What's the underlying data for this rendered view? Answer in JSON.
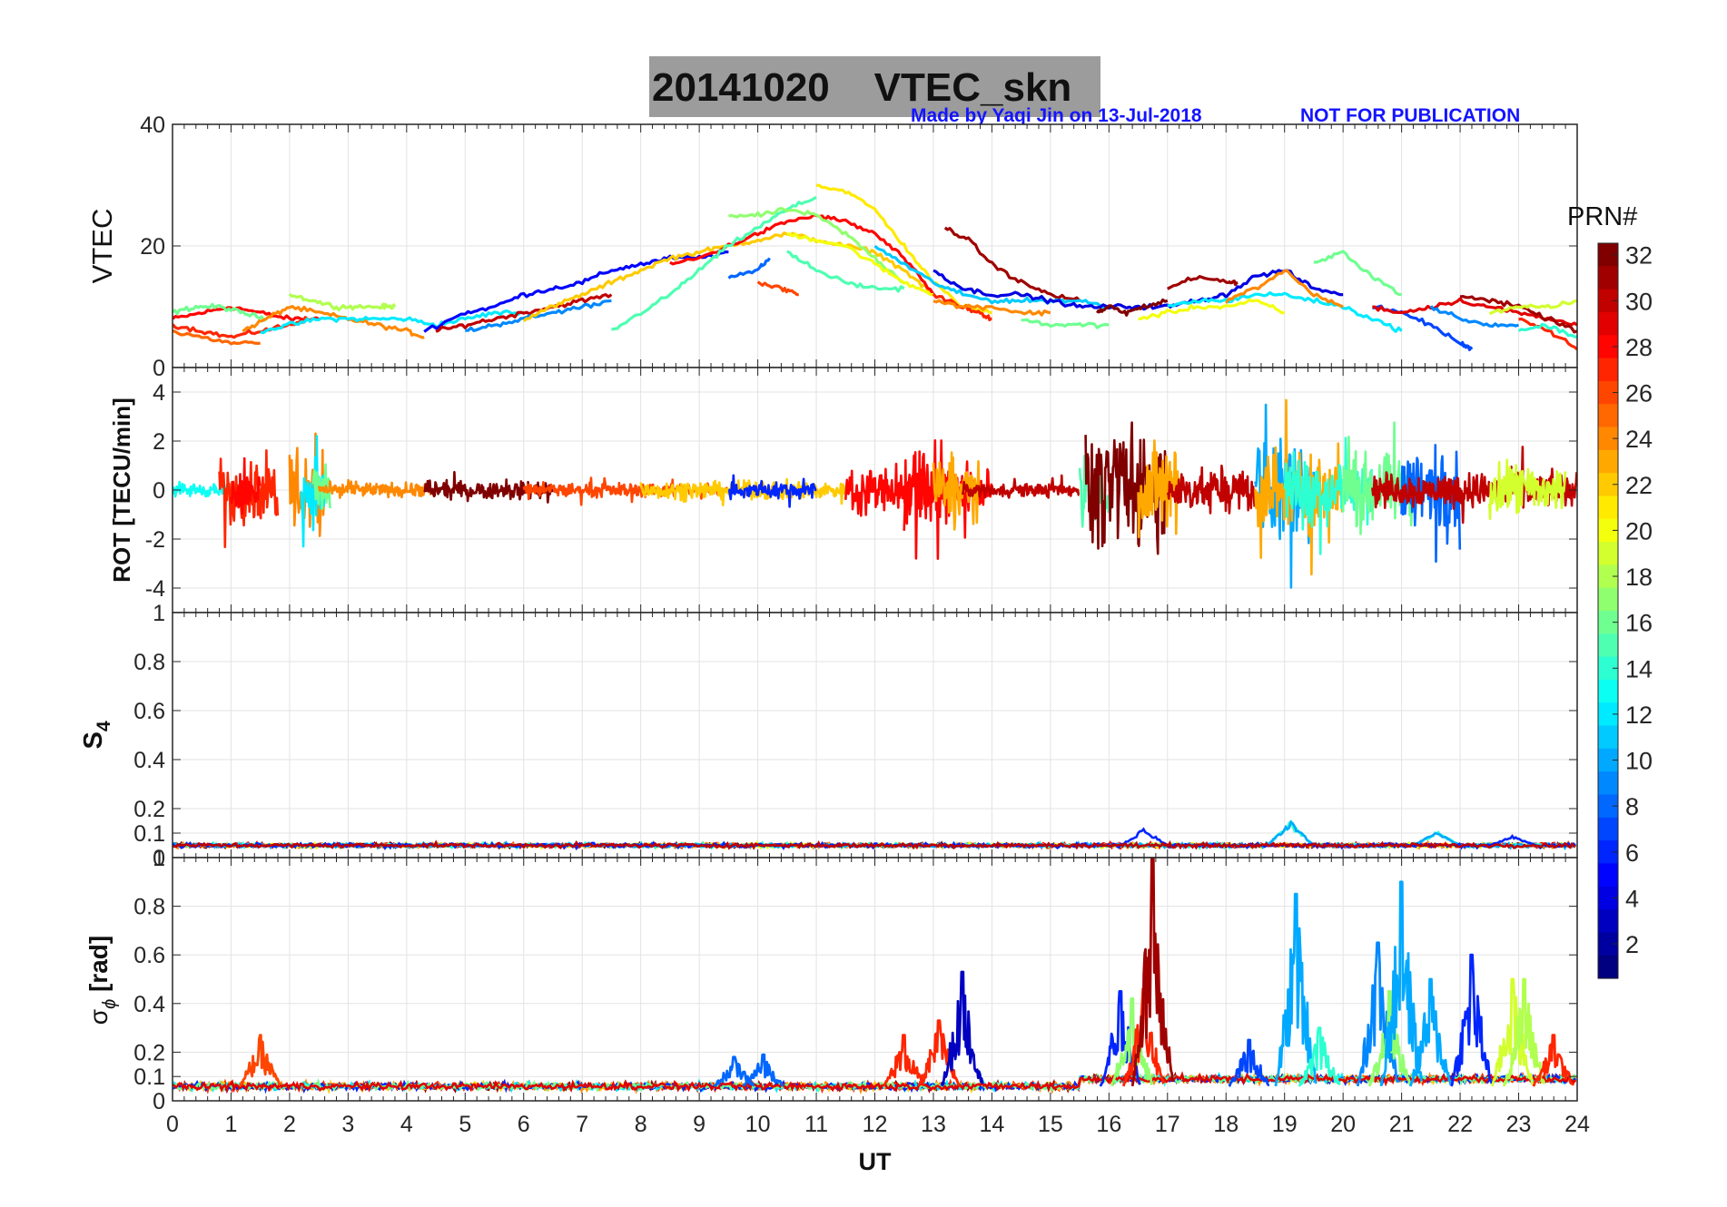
{
  "title": {
    "date": "20141020",
    "param": "VTEC_skn",
    "full": "20141020    VTEC_skn"
  },
  "credit": {
    "made_by": "Made by Yaqi Jin on 13-Jul-2018",
    "notice": "NOT FOR PUBLICATION"
  },
  "colorbar": {
    "label": "PRN#",
    "ticks": [
      2,
      4,
      6,
      8,
      10,
      12,
      14,
      16,
      18,
      20,
      22,
      24,
      26,
      28,
      30,
      32
    ],
    "range": [
      1,
      32
    ],
    "colormap": "jet"
  },
  "x_axis": {
    "label": "UT",
    "ticks": [
      "0",
      "1",
      "2",
      "3",
      "4",
      "5",
      "6",
      "7",
      "8",
      "9",
      "10",
      "11",
      "12",
      "13",
      "14",
      "15",
      "16",
      "17",
      "18",
      "19",
      "20",
      "21",
      "22",
      "23",
      "24"
    ],
    "range": [
      0,
      24
    ]
  },
  "panels": [
    {
      "id": "vtec",
      "ylabel": "VTEC",
      "ylim": [
        0,
        40
      ],
      "yticks": [
        "0",
        "20",
        "40"
      ]
    },
    {
      "id": "rot",
      "ylabel": "ROT [TECU/min]",
      "ylim": [
        -5,
        5
      ],
      "yticks": [
        "-4",
        "-2",
        "0",
        "2",
        "4"
      ]
    },
    {
      "id": "s4",
      "ylabel": "S4",
      "ylabel_main": "S",
      "ylabel_sub": "4",
      "ylim": [
        0,
        1
      ],
      "yticks": [
        "0",
        "0.1",
        "0.2",
        "0.4",
        "0.6",
        "0.8",
        "1"
      ]
    },
    {
      "id": "sigphi",
      "ylabel": "σφ [rad]",
      "ylabel_main": "σ",
      "ylabel_sub": "ϕ",
      "ylabel_unit": "[rad]",
      "ylim": [
        0,
        1
      ],
      "yticks": [
        "0",
        "0.1",
        "0.2",
        "0.4",
        "0.6",
        "0.8",
        "1"
      ]
    }
  ],
  "chart_data": [
    {
      "type": "line",
      "title": "20141020    VTEC_skn",
      "xlabel": "UT",
      "ylabel": "VTEC",
      "xlim": [
        0,
        24
      ],
      "ylim": [
        0,
        40
      ],
      "series": [
        {
          "prn": 28,
          "x": [
            0,
            0.5,
            1,
            1.5,
            2,
            2.5
          ],
          "y": [
            8,
            9,
            10,
            9,
            8,
            8
          ]
        },
        {
          "prn": 25,
          "x": [
            0,
            0.5,
            1,
            1.5
          ],
          "y": [
            6,
            5,
            4,
            4
          ]
        },
        {
          "prn": 16,
          "x": [
            0,
            0.4,
            0.8,
            1.2,
            1.6
          ],
          "y": [
            9,
            10,
            10,
            9,
            8
          ]
        },
        {
          "prn": 27,
          "x": [
            0,
            0.5,
            1,
            1.5,
            2,
            2.3
          ],
          "y": [
            7,
            6,
            5,
            6,
            7,
            8
          ]
        },
        {
          "prn": 24,
          "x": [
            1.2,
            1.6,
            2,
            2.5,
            3,
            3.5,
            4,
            4.3
          ],
          "y": [
            6,
            8,
            10,
            9,
            8,
            7,
            6,
            5
          ]
        },
        {
          "prn": 18,
          "x": [
            2,
            2.4,
            2.8,
            3.2,
            3.6,
            3.8
          ],
          "y": [
            12,
            11,
            10,
            10,
            10,
            10
          ]
        },
        {
          "prn": 12,
          "x": [
            1.5,
            2,
            2.5,
            3,
            3.5,
            4,
            4.5,
            5,
            5.5,
            6
          ],
          "y": [
            6,
            7,
            8,
            8,
            8,
            8,
            7,
            8,
            9,
            9
          ]
        },
        {
          "prn": 5,
          "x": [
            4.3,
            5,
            5.5,
            6,
            6.5,
            7,
            7.5,
            8,
            8.5,
            9,
            9.5
          ],
          "y": [
            6,
            9,
            10,
            12,
            13,
            14,
            16,
            17,
            18,
            18,
            19
          ]
        },
        {
          "prn": 30,
          "x": [
            4.5,
            5,
            5.5,
            6,
            6.5,
            7,
            7.5
          ],
          "y": [
            6,
            7,
            8,
            9,
            10,
            11,
            12
          ]
        },
        {
          "prn": 9,
          "x": [
            5,
            5.5,
            6,
            6.5,
            7,
            7.5
          ],
          "y": [
            6,
            7,
            8,
            9,
            10,
            11
          ]
        },
        {
          "prn": 22,
          "x": [
            6,
            6.5,
            7,
            7.5,
            8,
            8.5,
            9,
            9.5,
            10,
            10.5,
            11,
            11.5,
            12,
            12.5,
            13
          ],
          "y": [
            8,
            10,
            12,
            14,
            16,
            18,
            19,
            20,
            21,
            22,
            21,
            20,
            19,
            16,
            12
          ]
        },
        {
          "prn": 28,
          "x": [
            8.5,
            9,
            9.5,
            10,
            10.5,
            11,
            11.5,
            12,
            12.5,
            13
          ],
          "y": [
            17,
            18,
            20,
            22,
            24,
            25,
            24,
            22,
            18,
            12
          ]
        },
        {
          "prn": 15,
          "x": [
            7.5,
            8,
            8.5,
            9,
            9.5,
            10,
            10.5,
            11
          ],
          "y": [
            6,
            9,
            12,
            16,
            20,
            23,
            26,
            28
          ]
        },
        {
          "prn": 17,
          "x": [
            9.5,
            10,
            10.5,
            11,
            11.5,
            12,
            12.5
          ],
          "y": [
            25,
            25,
            26,
            25,
            22,
            18,
            14
          ]
        },
        {
          "prn": 21,
          "x": [
            11,
            11.5,
            12,
            12.5,
            13,
            13.5,
            14
          ],
          "y": [
            30,
            29,
            26,
            20,
            14,
            10,
            9
          ]
        },
        {
          "prn": 20,
          "x": [
            10.5,
            11,
            11.5,
            12,
            12.5,
            13
          ],
          "y": [
            22,
            21,
            20,
            17,
            14,
            12
          ]
        },
        {
          "prn": 8,
          "x": [
            9.5,
            10,
            10.2
          ],
          "y": [
            15,
            16,
            18
          ]
        },
        {
          "prn": 15,
          "x": [
            10.5,
            11,
            11.5,
            12,
            12.5
          ],
          "y": [
            19,
            16,
            14,
            13,
            13
          ]
        },
        {
          "prn": 26,
          "x": [
            10,
            10.4,
            10.7
          ],
          "y": [
            14,
            13,
            12
          ]
        },
        {
          "prn": 31,
          "x": [
            13.2,
            13.6,
            14,
            14.5,
            15,
            15.5
          ],
          "y": [
            23,
            21,
            17,
            14,
            12,
            11
          ]
        },
        {
          "prn": 11,
          "x": [
            12,
            12.5,
            13,
            13.5,
            14,
            14.5,
            15,
            15.5,
            16
          ],
          "y": [
            20,
            17,
            14,
            12,
            11,
            11,
            11,
            11,
            10
          ]
        },
        {
          "prn": 4,
          "x": [
            13,
            13.5,
            14,
            14.5,
            15,
            15.5,
            16,
            16.5,
            17,
            17.5,
            18,
            18.5,
            19,
            19.5,
            20
          ],
          "y": [
            16,
            13,
            12,
            12,
            11,
            10,
            10,
            10,
            10,
            11,
            12,
            15,
            16,
            13,
            12
          ]
        },
        {
          "prn": 27,
          "x": [
            13,
            13.5,
            13.8,
            14
          ],
          "y": [
            12,
            10,
            9,
            8
          ]
        },
        {
          "prn": 24,
          "x": [
            13,
            13.5,
            14,
            14.5,
            15
          ],
          "y": [
            11,
            10,
            10,
            9,
            9
          ]
        },
        {
          "prn": 16,
          "x": [
            14.5,
            15,
            15.5,
            16
          ],
          "y": [
            8,
            7,
            7,
            7
          ]
        },
        {
          "prn": 32,
          "x": [
            15.8,
            16,
            16.3,
            16.6,
            17
          ],
          "y": [
            9,
            10,
            9,
            10,
            11
          ]
        },
        {
          "prn": 31,
          "x": [
            17,
            17.5,
            18,
            18.2
          ],
          "y": [
            13,
            15,
            14,
            14
          ]
        },
        {
          "prn": 20,
          "x": [
            16.5,
            17,
            17.5,
            18,
            18.5,
            19
          ],
          "y": [
            8,
            9,
            10,
            10,
            11,
            9
          ]
        },
        {
          "prn": 12,
          "x": [
            17,
            17.5,
            18,
            18.5,
            19,
            19.5,
            20,
            20.5,
            21
          ],
          "y": [
            10,
            11,
            11,
            12,
            12,
            11,
            10,
            8,
            6
          ]
        },
        {
          "prn": 24,
          "x": [
            18,
            18.5,
            19,
            19.5,
            20
          ],
          "y": [
            11,
            13,
            16,
            12,
            10
          ]
        },
        {
          "prn": 16,
          "x": [
            19.5,
            20,
            20.5,
            21
          ],
          "y": [
            17,
            19,
            15,
            12
          ]
        },
        {
          "prn": 7,
          "x": [
            20.5,
            21,
            21.5,
            22,
            22.2
          ],
          "y": [
            10,
            9,
            7,
            4,
            3
          ]
        },
        {
          "prn": 29,
          "x": [
            20.5,
            21,
            21.5,
            22,
            22.5,
            23,
            23.5,
            24
          ],
          "y": [
            10,
            9,
            10,
            11,
            10,
            9,
            8,
            7
          ]
        },
        {
          "prn": 31,
          "x": [
            22,
            22.5,
            23,
            23.5,
            24
          ],
          "y": [
            12,
            11,
            10,
            8,
            6
          ]
        },
        {
          "prn": 27,
          "x": [
            23,
            23.5,
            24
          ],
          "y": [
            8,
            6,
            3
          ]
        },
        {
          "prn": 19,
          "x": [
            22.5,
            23,
            23.5,
            24
          ],
          "y": [
            9,
            10,
            10,
            11
          ]
        },
        {
          "prn": 14,
          "x": [
            23,
            23.5,
            24
          ],
          "y": [
            6,
            7,
            5
          ]
        },
        {
          "prn": 9,
          "x": [
            21.5,
            22,
            22.5,
            23
          ],
          "y": [
            10,
            8,
            7,
            7
          ]
        }
      ]
    },
    {
      "type": "line",
      "xlabel": "UT",
      "ylabel": "ROT [TECU/min]",
      "xlim": [
        0,
        24
      ],
      "ylim": [
        -5,
        5
      ],
      "baseline": 0,
      "activity": [
        {
          "x0": 0.0,
          "x1": 1.0,
          "amp": 0.4,
          "prn": 13
        },
        {
          "x0": 0.8,
          "x1": 1.8,
          "amp": 1.8,
          "prn": 27
        },
        {
          "x0": 1.0,
          "x1": 1.5,
          "amp": 1.2,
          "prn": 28
        },
        {
          "x0": 2.0,
          "x1": 2.6,
          "amp": 3.0,
          "prn": 24
        },
        {
          "x0": 2.2,
          "x1": 2.6,
          "amp": 2.0,
          "prn": 12
        },
        {
          "x0": 2.4,
          "x1": 2.7,
          "amp": 1.6,
          "prn": 16
        },
        {
          "x0": 2.5,
          "x1": 4.5,
          "amp": 0.4,
          "prn": 24
        },
        {
          "x0": 4.3,
          "x1": 6.5,
          "amp": 0.5,
          "prn": 32
        },
        {
          "x0": 6.0,
          "x1": 9.5,
          "amp": 0.4,
          "prn": 26
        },
        {
          "x0": 8.0,
          "x1": 11.5,
          "amp": 0.5,
          "prn": 22
        },
        {
          "x0": 9.5,
          "x1": 11.0,
          "amp": 0.5,
          "prn": 6
        },
        {
          "x0": 11.5,
          "x1": 14.0,
          "amp": 1.3,
          "prn": 28
        },
        {
          "x0": 12.5,
          "x1": 13.3,
          "amp": 2.5,
          "prn": 28
        },
        {
          "x0": 13.0,
          "x1": 13.8,
          "amp": 1.8,
          "prn": 23
        },
        {
          "x0": 13.5,
          "x1": 15.5,
          "amp": 0.4,
          "prn": 30
        },
        {
          "x0": 15.5,
          "x1": 16.0,
          "amp": 2.0,
          "prn": 15
        },
        {
          "x0": 15.6,
          "x1": 17.0,
          "amp": 3.2,
          "prn": 32
        },
        {
          "x0": 16.5,
          "x1": 17.2,
          "amp": 2.8,
          "prn": 23
        },
        {
          "x0": 17.0,
          "x1": 18.5,
          "amp": 1.2,
          "prn": 30
        },
        {
          "x0": 18.5,
          "x1": 19.5,
          "amp": 3.2,
          "prn": 10
        },
        {
          "x0": 18.5,
          "x1": 20.0,
          "amp": 2.4,
          "prn": 23
        },
        {
          "x0": 19.0,
          "x1": 20.5,
          "amp": 2.0,
          "prn": 14
        },
        {
          "x0": 20.0,
          "x1": 21.2,
          "amp": 2.0,
          "prn": 16
        },
        {
          "x0": 21.0,
          "x1": 22.0,
          "amp": 2.5,
          "prn": 8
        },
        {
          "x0": 20.5,
          "x1": 24.0,
          "amp": 1.0,
          "prn": 30
        },
        {
          "x0": 22.5,
          "x1": 23.8,
          "amp": 1.5,
          "prn": 19
        }
      ]
    },
    {
      "type": "line",
      "xlabel": "UT",
      "ylabel": "S4",
      "xlim": [
        0,
        24
      ],
      "ylim": [
        0,
        1
      ],
      "baseline": 0.05,
      "features": [
        {
          "x": 16.6,
          "peak": 0.12,
          "prn": 6
        },
        {
          "x": 19.1,
          "peak": 0.15,
          "prn": 12
        },
        {
          "x": 21.6,
          "peak": 0.11,
          "prn": 12
        },
        {
          "x": 22.9,
          "peak": 0.09,
          "prn": 6
        }
      ]
    },
    {
      "type": "line",
      "xlabel": "UT",
      "ylabel": "σφ [rad]",
      "xlim": [
        0,
        24
      ],
      "ylim": [
        0,
        1
      ],
      "baseline": 0.06,
      "peaks": [
        {
          "x": 1.5,
          "peak": 0.27,
          "prn": 26
        },
        {
          "x": 9.6,
          "peak": 0.18,
          "prn": 8
        },
        {
          "x": 10.1,
          "peak": 0.19,
          "prn": 8
        },
        {
          "x": 12.5,
          "peak": 0.27,
          "prn": 27
        },
        {
          "x": 13.1,
          "peak": 0.33,
          "prn": 27
        },
        {
          "x": 13.5,
          "peak": 0.53,
          "prn": 3
        },
        {
          "x": 16.2,
          "peak": 0.45,
          "prn": 6
        },
        {
          "x": 16.4,
          "peak": 0.42,
          "prn": 17
        },
        {
          "x": 16.6,
          "peak": 0.46,
          "prn": 27
        },
        {
          "x": 16.75,
          "peak": 1.0,
          "prn": 31
        },
        {
          "x": 18.4,
          "peak": 0.25,
          "prn": 7
        },
        {
          "x": 19.2,
          "peak": 0.85,
          "prn": 10
        },
        {
          "x": 19.6,
          "peak": 0.3,
          "prn": 14
        },
        {
          "x": 20.6,
          "peak": 0.65,
          "prn": 9
        },
        {
          "x": 20.8,
          "peak": 0.45,
          "prn": 17
        },
        {
          "x": 21.0,
          "peak": 0.9,
          "prn": 10
        },
        {
          "x": 21.5,
          "peak": 0.5,
          "prn": 10
        },
        {
          "x": 22.2,
          "peak": 0.6,
          "prn": 6
        },
        {
          "x": 22.9,
          "peak": 0.5,
          "prn": 19
        },
        {
          "x": 23.1,
          "peak": 0.5,
          "prn": 18
        },
        {
          "x": 23.6,
          "peak": 0.27,
          "prn": 27
        }
      ]
    }
  ]
}
